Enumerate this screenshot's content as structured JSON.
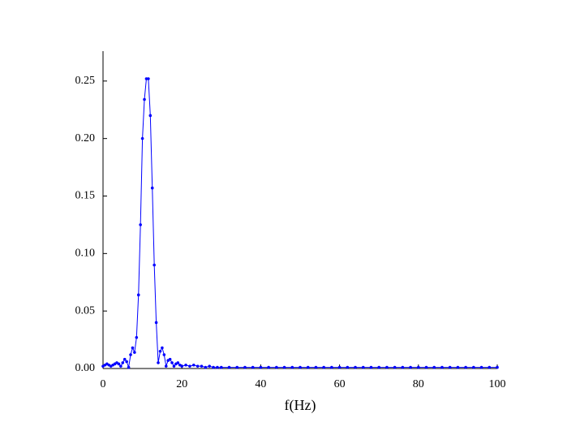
{
  "chart_data": {
    "type": "line",
    "x_label": "f(Hz)",
    "x": [
      0,
      0.5,
      1,
      1.5,
      2,
      2.5,
      3,
      3.5,
      4,
      4.5,
      5,
      5.5,
      6,
      6.5,
      7,
      7.5,
      8,
      8.5,
      9,
      9.5,
      10,
      10.5,
      11,
      11.5,
      12,
      12.5,
      13,
      13.5,
      14,
      14.5,
      15,
      15.5,
      16,
      16.5,
      17,
      17.5,
      18,
      18.5,
      19,
      19.5,
      20,
      21,
      22,
      23,
      24,
      25,
      26,
      27,
      28,
      29,
      30,
      32,
      34,
      36,
      38,
      40,
      42,
      44,
      46,
      48,
      50,
      52,
      54,
      56,
      58,
      60,
      62,
      64,
      66,
      68,
      70,
      72,
      74,
      76,
      78,
      80,
      82,
      84,
      86,
      88,
      90,
      92,
      94,
      96,
      98,
      100
    ],
    "series": [
      {
        "color": "#0000ff",
        "values": [
          0.002,
          0.003,
          0.004,
          0.003,
          0.002,
          0.003,
          0.004,
          0.005,
          0.004,
          0.002,
          0.005,
          0.008,
          0.006,
          0.001,
          0.012,
          0.018,
          0.014,
          0.027,
          0.064,
          0.125,
          0.2,
          0.234,
          0.252,
          0.252,
          0.22,
          0.157,
          0.09,
          0.04,
          0.005,
          0.015,
          0.018,
          0.012,
          0.002,
          0.007,
          0.008,
          0.005,
          0.002,
          0.004,
          0.005,
          0.003,
          0.002,
          0.003,
          0.002,
          0.003,
          0.002,
          0.002,
          0.001,
          0.002,
          0.001,
          0.001,
          0.001,
          0.001,
          0.001,
          0.001,
          0.001,
          0.001,
          0.001,
          0.001,
          0.001,
          0.001,
          0.001,
          0.001,
          0.001,
          0.001,
          0.001,
          0.001,
          0.001,
          0.001,
          0.001,
          0.001,
          0.001,
          0.001,
          0.001,
          0.001,
          0.001,
          0.001,
          0.001,
          0.001,
          0.001,
          0.001,
          0.001,
          0.001,
          0.001,
          0.001,
          0.001,
          0.001
        ]
      }
    ],
    "xlim": [
      0,
      100
    ],
    "xticks": [
      0,
      20,
      40,
      60,
      80,
      100
    ],
    "ylim": [
      0,
      0.276
    ],
    "yticks": [
      {
        "value": 0,
        "label": "0.00"
      },
      {
        "value": 0.05,
        "label": "0.05"
      },
      {
        "value": 0.1,
        "label": "0.10"
      },
      {
        "value": 0.15,
        "label": "0.15"
      },
      {
        "value": 0.2,
        "label": "0.20"
      },
      {
        "value": 0.25,
        "label": "0.25"
      }
    ]
  }
}
